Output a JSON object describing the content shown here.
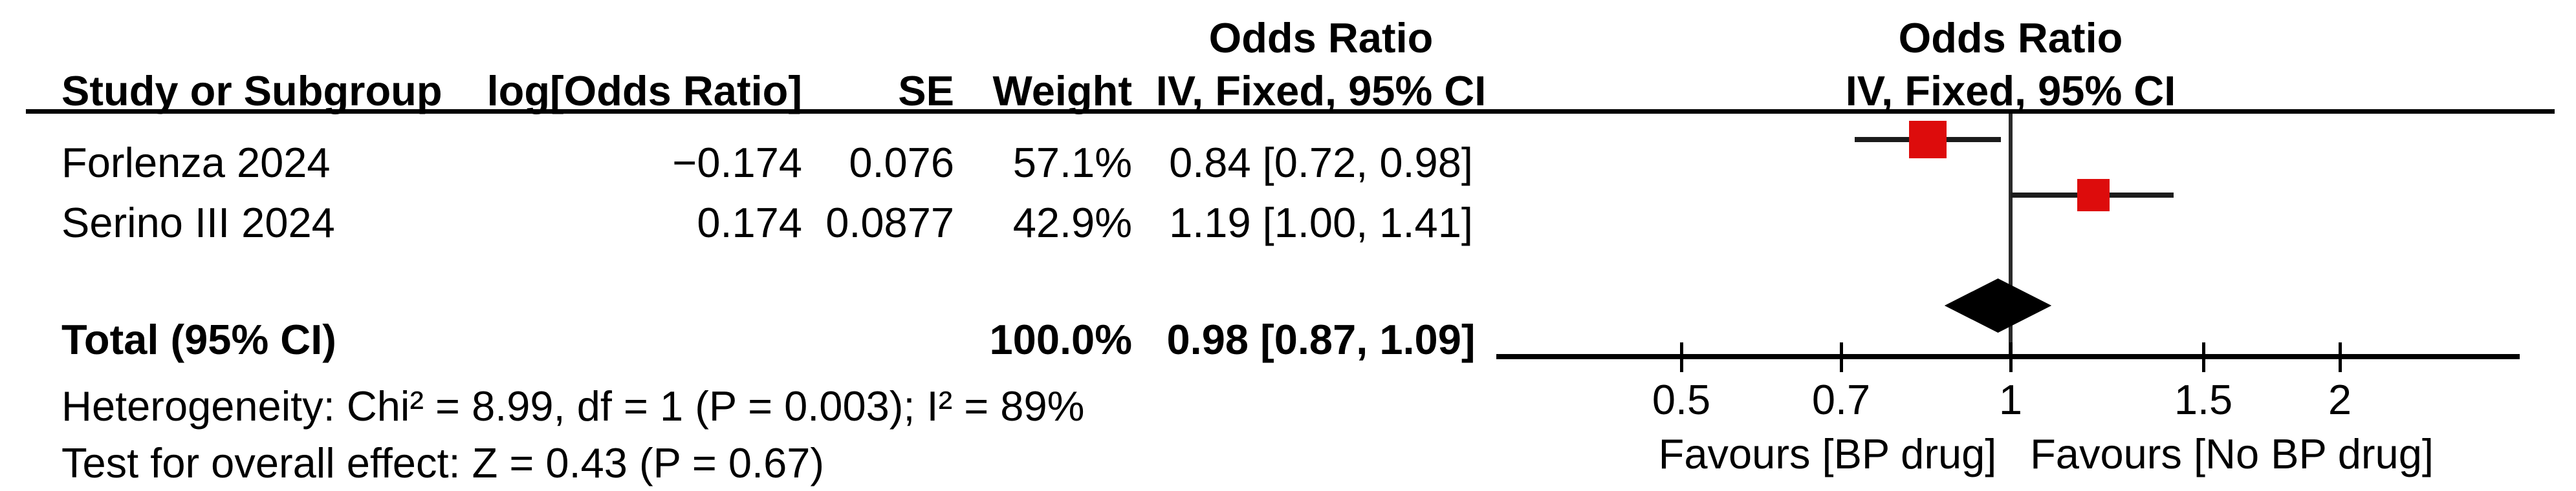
{
  "table": {
    "effect_header_top": "Odds Ratio",
    "headers": {
      "study": "Study or Subgroup",
      "log_or": "log[Odds Ratio]",
      "se": "SE",
      "weight": "Weight",
      "ci": "IV, Fixed, 95% CI"
    },
    "rows": [
      {
        "study": "Forlenza 2024",
        "log_or": "−0.174",
        "se": "0.076",
        "weight": "57.1%",
        "ci": "0.84 [0.72, 0.98]"
      },
      {
        "study": "Serino III 2024",
        "log_or": "0.174",
        "se": "0.0877",
        "weight": "42.9%",
        "ci": "1.19 [1.00, 1.41]"
      }
    ],
    "total": {
      "label": "Total (95% CI)",
      "weight": "100.0%",
      "ci": "0.98 [0.87, 1.09]"
    },
    "heterogeneity": "Heterogeneity: Chi² = 8.99, df = 1 (P = 0.003); I² = 89%",
    "overall_effect": "Test for overall effect: Z = 0.43 (P = 0.67)"
  },
  "plot": {
    "header_top": "Odds Ratio",
    "header_sub": "IV, Fixed, 95% CI",
    "marker_color": "#DD0C0C"
  },
  "chart_data": {
    "type": "forest",
    "effect_measure": "Odds Ratio",
    "method": "IV, Fixed, 95% CI",
    "scale": "log10",
    "null_line": 1,
    "x_ticks": [
      0.5,
      0.7,
      1,
      1.5,
      2
    ],
    "x_tick_labels": [
      "0.5",
      "0.7",
      "1",
      "1.5",
      "2"
    ],
    "x_range": [
      0.36,
      2.93
    ],
    "favours_left": "Favours [BP drug]",
    "favours_right": "Favours [No BP drug]",
    "studies": [
      {
        "name": "Forlenza 2024",
        "log_or": -0.174,
        "se": 0.076,
        "weight_pct": 57.1,
        "or": 0.84,
        "ci_low": 0.72,
        "ci_high": 0.98
      },
      {
        "name": "Serino III 2024",
        "log_or": 0.174,
        "se": 0.0877,
        "weight_pct": 42.9,
        "or": 1.19,
        "ci_low": 1.0,
        "ci_high": 1.41
      }
    ],
    "total": {
      "name": "Total (95% CI)",
      "weight_pct": 100.0,
      "or": 0.98,
      "ci_low": 0.87,
      "ci_high": 1.09
    },
    "heterogeneity": {
      "chi2": 8.99,
      "df": 1,
      "p": 0.003,
      "i2_pct": 89
    },
    "overall_effect": {
      "z": 0.43,
      "p": 0.67
    }
  }
}
